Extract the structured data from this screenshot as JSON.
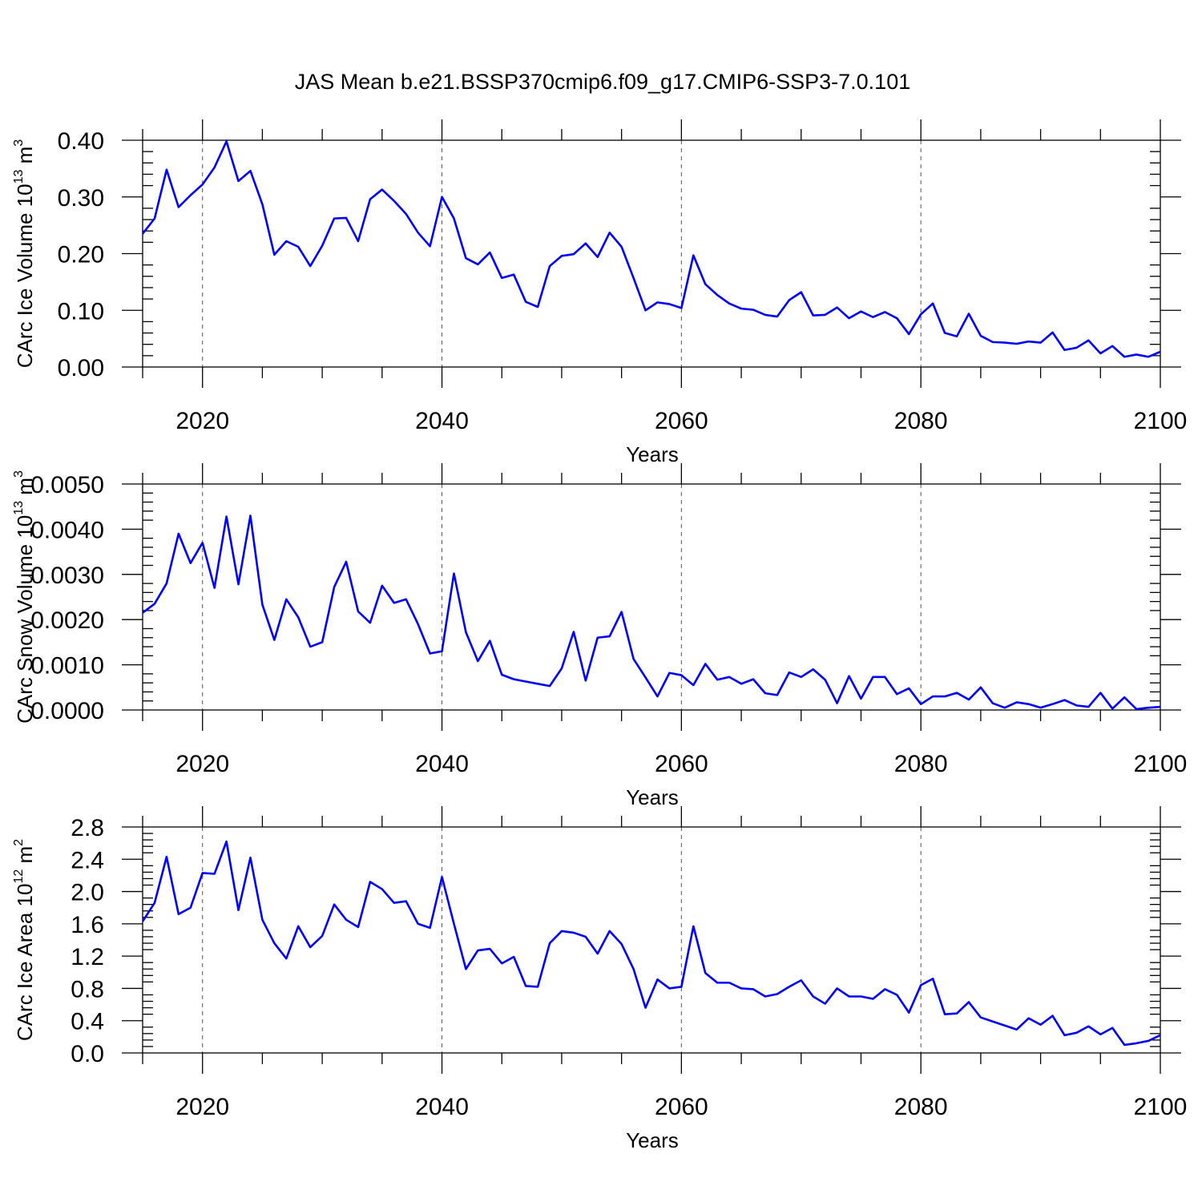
{
  "title": "JAS Mean b.e21.BSSP370cmip6.f09_g17.CMIP6-SSP3-7.0.101",
  "colors": {
    "series": "#0000ff",
    "axis": "#000000",
    "grid": "#555555"
  },
  "chart_data": [
    {
      "type": "line",
      "xlabel": "Years",
      "ylabel": {
        "text": "CArc Ice Volume 10",
        "exp": "13",
        "unit": " m",
        "unit_exp": "3"
      },
      "xlim": [
        2015,
        2100
      ],
      "ylim": [
        0,
        0.4
      ],
      "xticks": [
        2020,
        2040,
        2060,
        2080,
        2100
      ],
      "xtick_labels": [
        "2020",
        "2040",
        "2060",
        "2080",
        "2100"
      ],
      "yticks": [
        0,
        0.1,
        0.2,
        0.3,
        0.4
      ],
      "ytick_labels": [
        "0.00",
        "0.10",
        "0.20",
        "0.30",
        "0.40"
      ],
      "grid": "x-dashed",
      "x_start": 2015,
      "values": [
        0.235,
        0.262,
        0.348,
        0.282,
        0.303,
        0.322,
        0.352,
        0.398,
        0.328,
        0.346,
        0.287,
        0.198,
        0.222,
        0.212,
        0.178,
        0.214,
        0.262,
        0.263,
        0.222,
        0.296,
        0.313,
        0.293,
        0.27,
        0.237,
        0.213,
        0.3,
        0.262,
        0.192,
        0.181,
        0.202,
        0.157,
        0.163,
        0.115,
        0.106,
        0.178,
        0.196,
        0.199,
        0.218,
        0.194,
        0.237,
        0.212,
        0.157,
        0.1,
        0.114,
        0.111,
        0.104,
        0.197,
        0.146,
        0.127,
        0.112,
        0.103,
        0.101,
        0.092,
        0.089,
        0.118,
        0.132,
        0.091,
        0.092,
        0.105,
        0.086,
        0.098,
        0.088,
        0.097,
        0.086,
        0.058,
        0.093,
        0.112,
        0.06,
        0.054,
        0.094,
        0.055,
        0.044,
        0.043,
        0.041,
        0.045,
        0.043,
        0.061,
        0.03,
        0.034,
        0.047,
        0.024,
        0.037,
        0.018,
        0.022,
        0.018,
        0.027
      ]
    },
    {
      "type": "line",
      "xlabel": "Years",
      "ylabel": {
        "text": "CArc Snow Volume 10",
        "exp": "13",
        "unit": " m",
        "unit_exp": "3"
      },
      "xlim": [
        2015,
        2100
      ],
      "ylim": [
        0,
        0.005
      ],
      "xticks": [
        2020,
        2040,
        2060,
        2080,
        2100
      ],
      "xtick_labels": [
        "2020",
        "2040",
        "2060",
        "2080",
        "2100"
      ],
      "yticks": [
        0,
        0.001,
        0.002,
        0.003,
        0.004,
        0.005
      ],
      "ytick_labels": [
        "0.0000",
        "0.0010",
        "0.0020",
        "0.0030",
        "0.0040",
        "0.0050"
      ],
      "grid": "x-dashed",
      "x_start": 2015,
      "values": [
        0.00215,
        0.00235,
        0.0028,
        0.0039,
        0.00325,
        0.0037,
        0.0027,
        0.00428,
        0.00278,
        0.0043,
        0.00233,
        0.00155,
        0.00245,
        0.00205,
        0.0014,
        0.0015,
        0.00272,
        0.00328,
        0.00218,
        0.00193,
        0.00275,
        0.00237,
        0.00245,
        0.0019,
        0.00125,
        0.0013,
        0.00302,
        0.00172,
        0.00108,
        0.00153,
        0.00078,
        0.00068,
        0.00063,
        0.00058,
        0.00053,
        0.00092,
        0.00173,
        0.00065,
        0.0016,
        0.00163,
        0.00217,
        0.00113,
        0.00072,
        0.0003,
        0.00082,
        0.00077,
        0.00055,
        0.00102,
        0.00067,
        0.00073,
        0.00058,
        0.00068,
        0.00037,
        0.00033,
        0.00083,
        0.00073,
        0.0009,
        0.00067,
        0.00015,
        0.00075,
        0.00025,
        0.00073,
        0.00073,
        0.00035,
        0.00048,
        0.00013,
        0.0003,
        0.0003,
        0.00038,
        0.00023,
        0.0005,
        0.00015,
        5e-05,
        0.00017,
        0.00013,
        5e-05,
        0.00013,
        0.00022,
        0.0001,
        7e-05,
        0.00038,
        3e-05,
        0.00028,
        2e-05,
        5e-05,
        7e-05,
        0.00012
      ]
    },
    {
      "type": "line",
      "xlabel": "Years",
      "ylabel": {
        "text": "CArc Ice Area 10",
        "exp": "12",
        "unit": " m",
        "unit_exp": "2"
      },
      "xlim": [
        2015,
        2100
      ],
      "ylim": [
        0,
        2.8
      ],
      "xticks": [
        2020,
        2040,
        2060,
        2080,
        2100
      ],
      "xtick_labels": [
        "2020",
        "2040",
        "2060",
        "2080",
        "2100"
      ],
      "yticks": [
        0,
        0.4,
        0.8,
        1.2,
        1.6,
        2.0,
        2.4,
        2.8
      ],
      "ytick_labels": [
        "0.0",
        "0.4",
        "0.8",
        "1.2",
        "1.6",
        "2.0",
        "2.4",
        "2.8"
      ],
      "grid": "x-dashed",
      "x_start": 2015,
      "values": [
        1.63,
        1.86,
        2.43,
        1.72,
        1.8,
        2.23,
        2.22,
        2.62,
        1.77,
        2.42,
        1.65,
        1.36,
        1.17,
        1.57,
        1.31,
        1.45,
        1.84,
        1.65,
        1.56,
        2.12,
        2.03,
        1.86,
        1.88,
        1.6,
        1.55,
        2.18,
        1.6,
        1.04,
        1.27,
        1.29,
        1.11,
        1.19,
        0.83,
        0.82,
        1.36,
        1.51,
        1.49,
        1.44,
        1.23,
        1.51,
        1.35,
        1.04,
        0.56,
        0.91,
        0.8,
        0.82,
        1.57,
        0.99,
        0.87,
        0.87,
        0.8,
        0.79,
        0.7,
        0.73,
        0.82,
        0.9,
        0.7,
        0.61,
        0.8,
        0.7,
        0.7,
        0.67,
        0.79,
        0.72,
        0.5,
        0.84,
        0.92,
        0.48,
        0.49,
        0.63,
        0.44,
        0.39,
        0.34,
        0.29,
        0.43,
        0.35,
        0.46,
        0.22,
        0.25,
        0.33,
        0.23,
        0.31,
        0.1,
        0.12,
        0.15,
        0.22
      ]
    }
  ]
}
